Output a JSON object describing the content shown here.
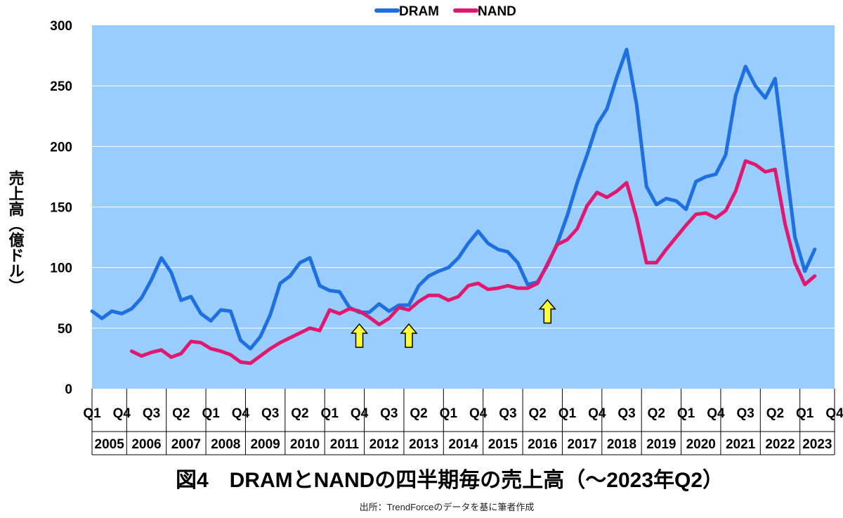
{
  "colors": {
    "plot_bg": "#99CCFF",
    "dram": "#1E6FE0",
    "nand": "#E0186E",
    "arrow": "#FFFF33",
    "grid": "#FFFFFF"
  },
  "chart_data": {
    "type": "line",
    "title": "図4　DRAMとNANDの四半期毎の売上高（～2023年Q2）",
    "source": "出所：TrendForceのデータを基に筆者作成",
    "ylabel": "売上高（億ドル）",
    "ylim": [
      0,
      300
    ],
    "yticks": [
      "0",
      "50",
      "100",
      "150",
      "200",
      "250",
      "300"
    ],
    "ytick_values": [
      0,
      50,
      100,
      150,
      200,
      250,
      300
    ],
    "quarter_labels": [
      "Q1",
      "Q4",
      "Q3",
      "Q2",
      "Q1",
      "Q4",
      "Q3",
      "Q2",
      "Q1",
      "Q4",
      "Q3",
      "Q2",
      "Q1",
      "Q4",
      "Q3",
      "Q2",
      "Q1",
      "Q4",
      "Q3",
      "Q2",
      "Q1",
      "Q4",
      "Q3",
      "Q2",
      "Q1",
      "Q4"
    ],
    "quarter_label_index": [
      0,
      3,
      6,
      9,
      12,
      15,
      18,
      21,
      24,
      27,
      30,
      33,
      36,
      39,
      42,
      45,
      48,
      51,
      54,
      57,
      60,
      63,
      66,
      69,
      72,
      75
    ],
    "years": [
      "2005",
      "2006",
      "2007",
      "2008",
      "2009",
      "2010",
      "2011",
      "2012",
      "2013",
      "2014",
      "2015",
      "2016",
      "2017",
      "2018",
      "2019",
      "2020",
      "2021",
      "2022",
      "2023"
    ],
    "x_count": 76,
    "series": [
      {
        "name": "DRAM",
        "start_index": 0,
        "values": [
          64,
          58,
          64,
          62,
          66,
          75,
          90,
          108,
          96,
          73,
          76,
          62,
          56,
          65,
          64,
          40,
          33,
          43,
          61,
          87,
          93,
          104,
          108,
          85,
          81,
          80,
          67,
          63,
          63,
          70,
          64,
          69,
          69,
          85,
          93,
          97,
          100,
          108,
          120,
          130,
          120,
          115,
          113,
          104,
          86,
          88,
          102,
          120,
          143,
          170,
          193,
          218,
          231,
          257,
          280,
          235,
          167,
          152,
          157,
          155,
          148,
          171,
          175,
          177,
          193,
          242,
          266,
          250,
          240,
          256,
          190,
          125,
          97,
          115
        ]
      },
      {
        "name": "NAND",
        "start_index": 4,
        "values": [
          31,
          27,
          30,
          32,
          26,
          29,
          39,
          38,
          33,
          31,
          28,
          22,
          21,
          27,
          33,
          38,
          42,
          46,
          50,
          48,
          65,
          62,
          66,
          64,
          59,
          53,
          58,
          67,
          65,
          72,
          77,
          77,
          73,
          76,
          85,
          87,
          82,
          83,
          85,
          83,
          83,
          87,
          103,
          119,
          123,
          132,
          151,
          162,
          158,
          163,
          170,
          141,
          104,
          104,
          115,
          125,
          135,
          144,
          145,
          141,
          147,
          163,
          188,
          185,
          179,
          181,
          136,
          104,
          86,
          93
        ]
      }
    ],
    "annotations": [
      {
        "type": "arrow",
        "x_index": 27,
        "value": 40,
        "direction": "up"
      },
      {
        "type": "arrow",
        "x_index": 32,
        "value": 40,
        "direction": "up"
      },
      {
        "type": "arrow",
        "x_index": 46,
        "value": 60,
        "direction": "up"
      }
    ]
  }
}
